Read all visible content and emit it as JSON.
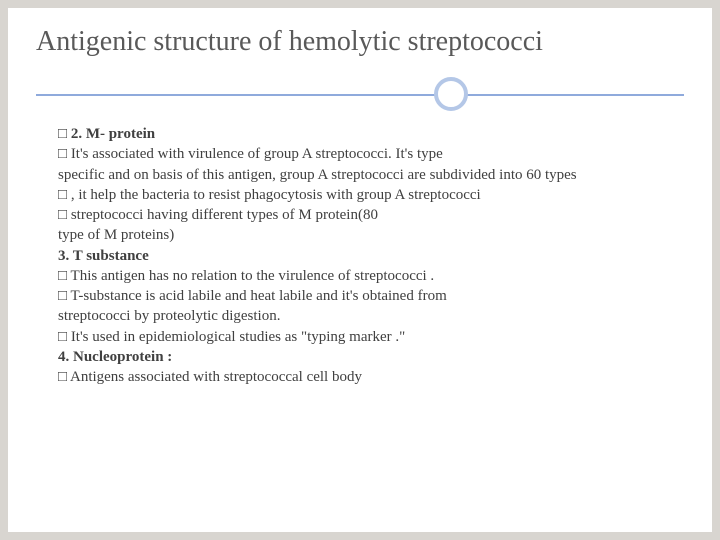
{
  "title": "Antigenic structure of hemolytic streptococci",
  "lines": {
    "l1": "2. M- protein",
    "l2": "It's associated with virulence of group A streptococci. It's type",
    "l3": "specific and on basis of this antigen, group A streptococci are subdivided into 60 types",
    "l4": ", it help the bacteria to resist phagocytosis with group A streptococci",
    "l5": "streptococci having different types of M protein(80",
    "l6": "type of M proteins)",
    "l7": "3. T substance",
    "l8": "This antigen has no relation to the virulence of streptococci .",
    "l9": "T-substance is acid labile and heat labile and it's obtained from",
    "l10": "streptococci by proteolytic digestion.",
    "l11": "It's used in epidemiological studies as \"typing marker .\"",
    "l12": "4. Nucleoprotein :",
    "l13": " Antigens associated with streptococcal cell body"
  },
  "colors": {
    "background": "#d8d5d0",
    "slide_bg": "#ffffff",
    "title_color": "#595959",
    "text_color": "#404040",
    "line_color": "#8faadc",
    "circle_color": "#b4c7e7"
  },
  "typography": {
    "title_fontsize": 28,
    "body_fontsize": 15,
    "font_family": "Georgia"
  }
}
